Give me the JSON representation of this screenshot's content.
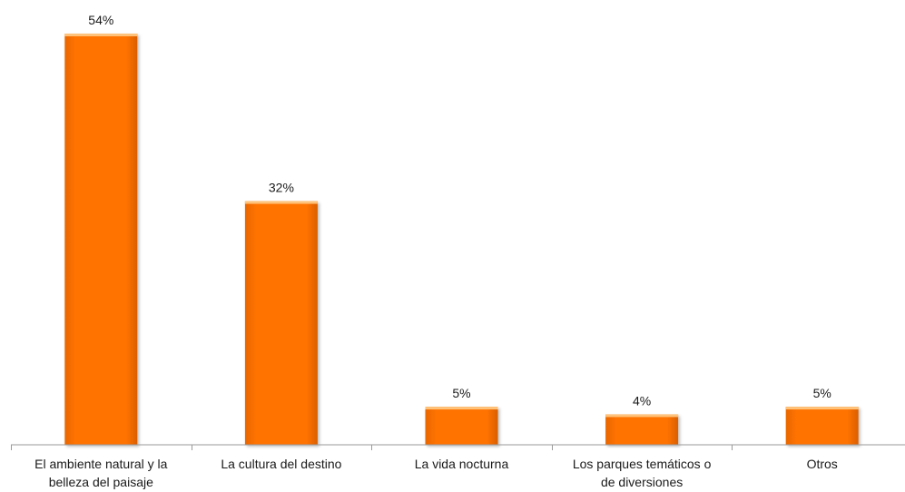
{
  "chart_data": {
    "type": "bar",
    "categories": [
      [
        "El ambiente natural y la",
        "belleza del paisaje"
      ],
      [
        "La cultura del destino"
      ],
      [
        "La vida nocturna"
      ],
      [
        "Los parques temáticos o",
        "de diversiones"
      ],
      [
        "Otros"
      ]
    ],
    "values": [
      54,
      32,
      5,
      4,
      5
    ],
    "value_labels": [
      "54%",
      "32%",
      "5%",
      "4%",
      "5%"
    ],
    "ylim": [
      0,
      60
    ],
    "grid": false,
    "legend": "none",
    "colors": {
      "bar_fill": "#ff7300",
      "bar_top": "#ffc27a",
      "bar_shade": "#d95f00",
      "axis": "#9a9a9a"
    }
  }
}
